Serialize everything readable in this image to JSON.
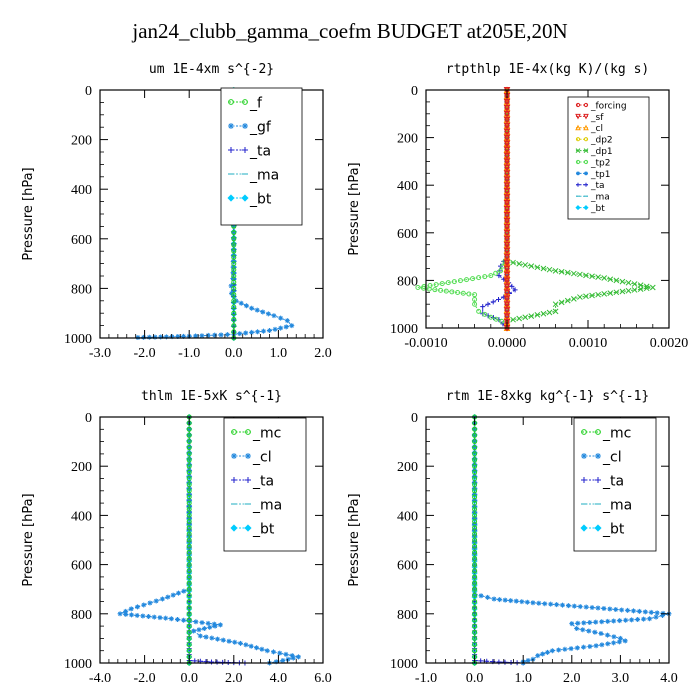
{
  "figure": {
    "title": "jan24_clubb_gamma_coefm  BUDGET at205E,20N"
  },
  "chart_data": [
    {
      "type": "line",
      "title": "um  1E-4xm s^{-2}",
      "ylabel": "Pressure [hPa]",
      "xlim": [
        -3.0,
        2.0
      ],
      "ylim": [
        1000,
        0
      ],
      "xticks": [
        -3.0,
        -2.0,
        -1.0,
        0.0,
        1.0,
        2.0
      ],
      "xtick_labels": [
        "-3.0",
        "-2.0",
        "-1.0",
        "0.0",
        "1.0",
        "2.0"
      ],
      "yticks": [
        0,
        200,
        400,
        600,
        800,
        1000
      ],
      "ytick_labels": [
        "0",
        "200",
        "400",
        "600",
        "800",
        "1000"
      ],
      "legend_position": "top-right",
      "series": [
        {
          "name": "_f",
          "color": "#20d020",
          "marker": "circle",
          "points": [
            [
              0.0,
              0
            ],
            [
              0.0,
              100
            ],
            [
              0.0,
              200
            ],
            [
              0.0,
              300
            ],
            [
              0.0,
              400
            ],
            [
              0.0,
              500
            ],
            [
              0.0,
              600
            ],
            [
              0.0,
              700
            ],
            [
              0.0,
              800
            ],
            [
              0.0,
              900
            ],
            [
              0.0,
              1000
            ]
          ]
        },
        {
          "name": "_gf",
          "color": "#2288dd",
          "marker": "star",
          "points": [
            [
              0.0,
              0
            ],
            [
              0.0,
              300
            ],
            [
              0.0,
              600
            ],
            [
              -0.02,
              760
            ],
            [
              -0.06,
              790
            ],
            [
              -0.05,
              820
            ],
            [
              0.05,
              850
            ],
            [
              0.4,
              880
            ],
            [
              0.9,
              910
            ],
            [
              1.2,
              930
            ],
            [
              1.3,
              950
            ],
            [
              0.8,
              970
            ],
            [
              0.0,
              985
            ],
            [
              -1.0,
              993
            ],
            [
              -2.15,
              998
            ]
          ]
        },
        {
          "name": "_ta",
          "color": "#2222cc",
          "marker": "plus",
          "points": [
            [
              0.0,
              0
            ],
            [
              0.0,
              500
            ],
            [
              0.0,
              1000
            ]
          ]
        },
        {
          "name": "_ma",
          "color": "#44bbcc",
          "marker": "dash",
          "points": [
            [
              0.0,
              0
            ],
            [
              0.0,
              500
            ],
            [
              0.0,
              1000
            ]
          ]
        },
        {
          "name": "_bt",
          "color": "#00ccff",
          "marker": "diamond",
          "points": [
            [
              0.0,
              0
            ],
            [
              0.0,
              500
            ],
            [
              0.0,
              1000
            ]
          ]
        }
      ]
    },
    {
      "type": "line",
      "title": "rtpthlp  1E-4x(kg K)/(kg s)",
      "ylabel": "Pressure [hPa]",
      "xlim": [
        -0.001,
        0.002
      ],
      "ylim": [
        1000,
        0
      ],
      "xticks": [
        -0.001,
        0.0,
        0.001,
        0.002
      ],
      "xtick_labels": [
        "-0.0010",
        "0.0000",
        "0.0010",
        "0.0020"
      ],
      "yticks": [
        0,
        200,
        400,
        600,
        800,
        1000
      ],
      "ytick_labels": [
        "0",
        "200",
        "400",
        "600",
        "800",
        "1000"
      ],
      "legend_position": "top-right",
      "series": [
        {
          "name": "_forcing",
          "color": "#dd2222",
          "marker": "circle",
          "points": [
            [
              0.0,
              0
            ],
            [
              0.0,
              100
            ],
            [
              0.0,
              200
            ],
            [
              0.0,
              300
            ],
            [
              0.0,
              400
            ],
            [
              0.0,
              500
            ],
            [
              0.0,
              600
            ],
            [
              0.0,
              700
            ],
            [
              0.0,
              800
            ],
            [
              0.0,
              900
            ],
            [
              0.0,
              1000
            ]
          ]
        },
        {
          "name": "_sf",
          "color": "#dd2222",
          "marker": "triangle-down",
          "points": [
            [
              0.0,
              0
            ],
            [
              0.0,
              500
            ],
            [
              0.0,
              1000
            ]
          ]
        },
        {
          "name": "_cl",
          "color": "#ff9900",
          "marker": "triangle",
          "points": [
            [
              0.0,
              0
            ],
            [
              0.0,
              500
            ],
            [
              0.0,
              1000
            ]
          ]
        },
        {
          "name": "_dp2",
          "color": "#ddcc00",
          "marker": "circle",
          "points": [
            [
              0.0,
              0
            ],
            [
              0.0,
              500
            ],
            [
              0.0,
              1000
            ]
          ]
        },
        {
          "name": "_dp1",
          "color": "#33bb33",
          "marker": "x",
          "points": [
            [
              0.0,
              0
            ],
            [
              0.0,
              720
            ],
            [
              0.0006,
              760
            ],
            [
              0.0012,
              790
            ],
            [
              0.0018,
              830
            ],
            [
              0.0009,
              870
            ],
            [
              0.0006,
              900
            ],
            [
              0.0006,
              930
            ],
            [
              0.0003,
              950
            ],
            [
              0.0,
              970
            ],
            [
              0.0,
              1000
            ]
          ]
        },
        {
          "name": "_tp2",
          "color": "#55dd55",
          "marker": "circle",
          "points": [
            [
              0.0,
              0
            ],
            [
              0.0,
              700
            ],
            [
              -8e-05,
              760
            ],
            [
              -0.0002,
              780
            ],
            [
              -0.0011,
              830
            ],
            [
              -0.0004,
              860
            ],
            [
              -0.0004,
              900
            ],
            [
              -0.00035,
              930
            ],
            [
              -0.0002,
              955
            ],
            [
              0.0,
              980
            ],
            [
              0.0,
              1000
            ]
          ]
        },
        {
          "name": "_tp1",
          "color": "#2288dd",
          "marker": "star",
          "points": [
            [
              0.0,
              0
            ],
            [
              0.0,
              1000
            ]
          ]
        },
        {
          "name": "_ta",
          "color": "#2222cc",
          "marker": "plus",
          "points": [
            [
              0.0,
              0
            ],
            [
              0.0,
              700
            ],
            [
              -8e-05,
              740
            ],
            [
              -0.0001,
              780
            ],
            [
              2e-05,
              810
            ],
            [
              0.0001,
              840
            ],
            [
              -4e-05,
              870
            ],
            [
              -0.0003,
              910
            ],
            [
              -0.0003,
              940
            ],
            [
              -0.0001,
              965
            ],
            [
              0.0,
              1000
            ]
          ]
        },
        {
          "name": "_ma",
          "color": "#44bbcc",
          "marker": "dash",
          "points": [
            [
              0.0,
              0
            ],
            [
              0.0,
              1000
            ]
          ]
        },
        {
          "name": "_bt",
          "color": "#00ccff",
          "marker": "diamond",
          "points": [
            [
              0.0,
              0
            ],
            [
              0.0,
              1000
            ]
          ]
        }
      ]
    },
    {
      "type": "line",
      "title": "thlm  1E-5xK s^{-1}",
      "ylabel": "Pressure [hPa]",
      "xlim": [
        -4.0,
        6.0
      ],
      "ylim": [
        1000,
        0
      ],
      "xticks": [
        -4.0,
        -2.0,
        0.0,
        2.0,
        4.0,
        6.0
      ],
      "xtick_labels": [
        "-4.0",
        "-2.0",
        "0.0",
        "2.0",
        "4.0",
        "6.0"
      ],
      "yticks": [
        0,
        200,
        400,
        600,
        800,
        1000
      ],
      "ytick_labels": [
        "0",
        "200",
        "400",
        "600",
        "800",
        "1000"
      ],
      "legend_position": "top-right",
      "series": [
        {
          "name": "_mc",
          "color": "#20d020",
          "marker": "circle",
          "points": [
            [
              0.0,
              0
            ],
            [
              0.0,
              100
            ],
            [
              0.0,
              200
            ],
            [
              0.0,
              300
            ],
            [
              0.0,
              400
            ],
            [
              0.0,
              500
            ],
            [
              0.0,
              600
            ],
            [
              0.0,
              700
            ],
            [
              0.0,
              800
            ],
            [
              0.0,
              900
            ],
            [
              0.0,
              1000
            ]
          ]
        },
        {
          "name": "_cl",
          "color": "#2288dd",
          "marker": "star",
          "points": [
            [
              0.0,
              0
            ],
            [
              0.0,
              600
            ],
            [
              0.0,
              700
            ],
            [
              -1.2,
              740
            ],
            [
              -2.6,
              780
            ],
            [
              -3.1,
              800
            ],
            [
              -0.8,
              820
            ],
            [
              1.4,
              845
            ],
            [
              0.2,
              870
            ],
            [
              0.5,
              890
            ],
            [
              2.3,
              920
            ],
            [
              3.5,
              950
            ],
            [
              4.9,
              975
            ],
            [
              4.2,
              990
            ],
            [
              3.6,
              1000
            ]
          ]
        },
        {
          "name": "_ta",
          "color": "#2222cc",
          "marker": "plus",
          "points": [
            [
              0.0,
              0
            ],
            [
              0.0,
              990
            ],
            [
              1.0,
              996
            ],
            [
              2.5,
              1000
            ]
          ]
        },
        {
          "name": "_ma",
          "color": "#44bbcc",
          "marker": "dash",
          "points": [
            [
              0.0,
              0
            ],
            [
              0.0,
              1000
            ]
          ]
        },
        {
          "name": "_bt",
          "color": "#00ccff",
          "marker": "diamond",
          "points": [
            [
              0.0,
              0
            ],
            [
              0.0,
              1000
            ]
          ]
        }
      ]
    },
    {
      "type": "line",
      "title": "rtm  1E-8xkg kg^{-1} s^{-1}",
      "ylabel": "Pressure [hPa]",
      "xlim": [
        -1.0,
        4.0
      ],
      "ylim": [
        1000,
        0
      ],
      "xticks": [
        -1.0,
        0.0,
        1.0,
        2.0,
        3.0,
        4.0
      ],
      "xtick_labels": [
        "-1.0",
        "0.0",
        "1.0",
        "2.0",
        "3.0",
        "4.0"
      ],
      "yticks": [
        0,
        200,
        400,
        600,
        800,
        1000
      ],
      "ytick_labels": [
        "0",
        "200",
        "400",
        "600",
        "800",
        "1000"
      ],
      "legend_position": "top-right",
      "series": [
        {
          "name": "_mc",
          "color": "#20d020",
          "marker": "circle",
          "points": [
            [
              0.0,
              0
            ],
            [
              0.0,
              100
            ],
            [
              0.0,
              200
            ],
            [
              0.0,
              300
            ],
            [
              0.0,
              400
            ],
            [
              0.0,
              500
            ],
            [
              0.0,
              600
            ],
            [
              0.0,
              700
            ],
            [
              0.0,
              800
            ],
            [
              0.0,
              900
            ],
            [
              0.0,
              1000
            ]
          ]
        },
        {
          "name": "_cl",
          "color": "#2288dd",
          "marker": "star",
          "points": [
            [
              0.0,
              0
            ],
            [
              0.0,
              650
            ],
            [
              0.0,
              720
            ],
            [
              0.4,
              740
            ],
            [
              1.2,
              755
            ],
            [
              4.0,
              800
            ],
            [
              3.6,
              820
            ],
            [
              2.0,
              840
            ],
            [
              2.1,
              860
            ],
            [
              2.6,
              880
            ],
            [
              3.0,
              900
            ],
            [
              3.1,
              910
            ],
            [
              2.5,
              930
            ],
            [
              1.6,
              950
            ],
            [
              1.3,
              970
            ],
            [
              1.2,
              985
            ],
            [
              1.0,
              995
            ],
            [
              1.0,
              1000
            ]
          ]
        },
        {
          "name": "_ta",
          "color": "#2222cc",
          "marker": "plus",
          "points": [
            [
              0.0,
              0
            ],
            [
              0.0,
              990
            ],
            [
              0.5,
              996
            ],
            [
              1.0,
              1000
            ]
          ]
        },
        {
          "name": "_ma",
          "color": "#44bbcc",
          "marker": "dash",
          "points": [
            [
              0.0,
              0
            ],
            [
              0.0,
              1000
            ]
          ]
        },
        {
          "name": "_bt",
          "color": "#00ccff",
          "marker": "diamond",
          "points": [
            [
              0.0,
              0
            ],
            [
              0.0,
              1000
            ]
          ]
        }
      ]
    }
  ]
}
